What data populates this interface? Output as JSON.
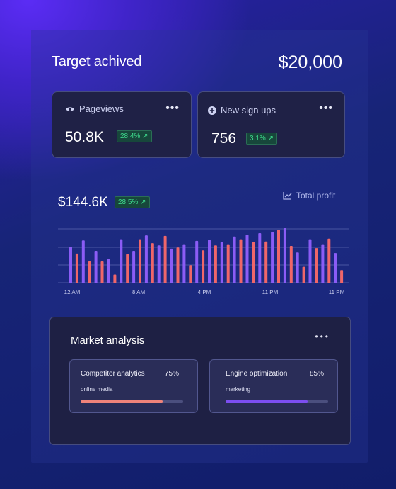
{
  "header": {
    "title": "Target achived",
    "amount": "$20,000"
  },
  "stats": [
    {
      "label": "Pageviews",
      "icon": "eye-icon",
      "value": "50.8K",
      "change": "28.4% ↗"
    },
    {
      "label": "New sign ups",
      "icon": "plus-circle-icon",
      "value": "756",
      "change": "3.1% ↗"
    }
  ],
  "chart": {
    "value": "$144.6K",
    "change": "28.5% ↗",
    "legend": "Total profit"
  },
  "chart_data": {
    "type": "bar",
    "x_ticks": [
      "12 AM",
      "8 AM",
      "4 PM",
      "11 PM",
      "11 PM"
    ],
    "series": [
      {
        "color": "#8b5cf6",
        "values": [
          0.66,
          0.78,
          0.59,
          0.44,
          0.8,
          0.59,
          0.87,
          0.69,
          0.63,
          0.71,
          0.77,
          0.79,
          0.75,
          0.85,
          0.88,
          0.91,
          0.93,
          1.0,
          0.56,
          0.8,
          0.71,
          0.55
        ]
      },
      {
        "color": "#f0666a",
        "values": [
          0.54,
          0.41,
          0.41,
          0.16,
          0.53,
          0.8,
          0.73,
          0.86,
          0.65,
          0.33,
          0.6,
          0.69,
          0.71,
          0.8,
          0.75,
          0.76,
          0.97,
          0.68,
          0.3,
          0.64,
          0.81,
          0.24
        ]
      }
    ],
    "colors": {
      "bar_a": "#8b5cf6",
      "bar_b": "#f0666a"
    }
  },
  "market": {
    "title": "Market analysis",
    "items": [
      {
        "name": "Competitor analytics",
        "percent": "75%",
        "tag": "online media",
        "progress": 0.8,
        "color": "#f0837a"
      },
      {
        "name": "Engine optimization",
        "percent": "85%",
        "tag": "marketing",
        "progress": 0.8,
        "color": "#7c4ef0"
      }
    ]
  }
}
